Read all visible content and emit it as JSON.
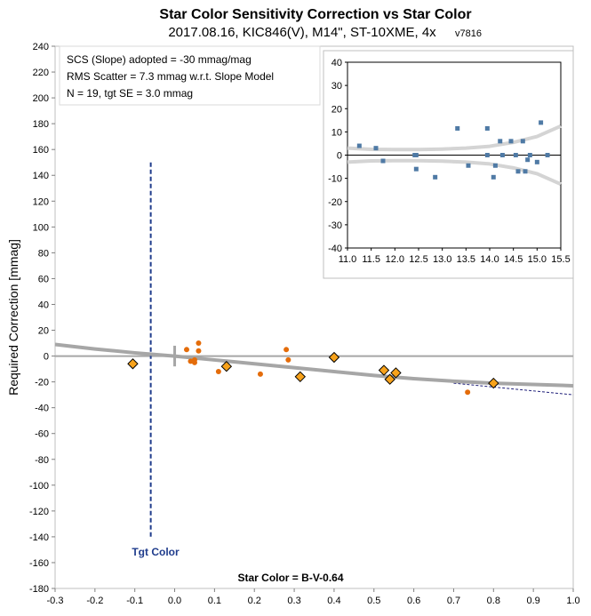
{
  "title": "Star Color Sensitivity Correction vs Star Color",
  "subtitle": "2017.08.16, KIC846(V), M14\", ST-10XME, 4x",
  "version": "v7816",
  "stats_box": {
    "line1": "SCS (Slope) adopted  =  -30 mmag/mag",
    "line2": "RMS Scatter = 7.3 mmag w.r.t. Slope Model",
    "line3": "N = 19,  tgt SE = 3.0 mmag"
  },
  "tgt_color_label": "Tgt Color",
  "colors": {
    "grey_model": "#a6a6a6",
    "orange_dot": "#e46c0a",
    "diamond_fill": "#f7a21b",
    "tgt_line": "#1f3c8c",
    "inset_marker": "#4f7aa5",
    "inset_band": "#d4d4d4"
  },
  "chart_data": [
    {
      "type": "scatter",
      "xlabel": "Star Color = B-V-0.64",
      "ylabel": "Required Correction [mmag]",
      "xlim": [
        -0.3,
        1.0
      ],
      "ylim": [
        -180,
        240
      ],
      "x_ticks": [
        -0.3,
        -0.2,
        -0.1,
        0.0,
        0.1,
        0.2,
        0.3,
        0.4,
        0.5,
        0.6,
        0.7,
        0.8,
        0.9,
        1.0
      ],
      "y_ticks": [
        -180,
        -160,
        -140,
        -120,
        -100,
        -80,
        -60,
        -40,
        -20,
        0,
        20,
        40,
        60,
        80,
        100,
        120,
        140,
        160,
        180,
        200,
        220,
        240
      ],
      "target_color_x": -0.06,
      "series": [
        {
          "marker": "circle",
          "x": [
            0.03,
            0.04,
            0.05,
            0.05,
            0.06,
            0.06,
            0.11,
            0.215,
            0.28,
            0.285,
            0.735
          ],
          "y": [
            5,
            -4,
            -5,
            -3,
            10,
            4,
            -12,
            -14,
            5,
            -3,
            -28
          ]
        },
        {
          "marker": "diamond",
          "x": [
            -0.105,
            0.13,
            0.315,
            0.4,
            0.525,
            0.54,
            0.555,
            0.8
          ],
          "y": [
            -6,
            -8,
            -16,
            -1,
            -11,
            -18,
            -13,
            -21
          ]
        }
      ],
      "model_curve": {
        "x": [
          -0.3,
          -0.2,
          -0.1,
          0.0,
          0.1,
          0.2,
          0.3,
          0.4,
          0.5,
          0.6,
          0.7,
          0.8,
          0.9,
          1.0
        ],
        "y": [
          9,
          5.5,
          2.5,
          0,
          -3,
          -6,
          -9,
          -12,
          -15,
          -17.5,
          -19.5,
          -21,
          -22,
          -23
        ]
      },
      "slope_line": {
        "x": [
          0.7,
          0.8,
          0.9,
          1.0
        ],
        "y": [
          -21,
          -24,
          -27,
          -30
        ]
      }
    },
    {
      "type": "scatter",
      "xlim": [
        11.0,
        15.5
      ],
      "ylim": [
        -40,
        40
      ],
      "x_ticks": [
        11.0,
        11.5,
        12.0,
        12.5,
        13.0,
        13.5,
        14.0,
        14.5,
        15.0,
        15.5
      ],
      "y_ticks": [
        -40,
        -30,
        -20,
        -10,
        0,
        10,
        20,
        30,
        40
      ],
      "x": [
        11.25,
        11.6,
        11.75,
        12.42,
        12.45,
        12.45,
        12.85,
        13.32,
        13.55,
        13.95,
        13.95,
        14.08,
        14.12,
        14.22,
        14.27,
        14.45,
        14.55,
        14.6,
        14.7,
        14.75,
        14.8,
        14.85,
        15.0,
        15.08,
        15.22
      ],
      "y": [
        4,
        3,
        -2.5,
        0,
        0,
        -6,
        -9.5,
        11.5,
        -4.5,
        11.5,
        0,
        -9.5,
        -4.5,
        6,
        0,
        6,
        0,
        -7,
        6,
        -7,
        -2,
        0,
        -3,
        14,
        0
      ],
      "band_upper": {
        "x": [
          11.0,
          11.5,
          12.0,
          12.5,
          13.0,
          13.5,
          14.0,
          14.5,
          15.0,
          15.5
        ],
        "y": [
          3.0,
          2.5,
          2.4,
          2.4,
          2.6,
          3.0,
          3.8,
          5.5,
          8.0,
          12.5
        ]
      },
      "band_lower": {
        "x": [
          11.0,
          11.5,
          12.0,
          12.5,
          13.0,
          13.5,
          14.0,
          14.5,
          15.0,
          15.5
        ],
        "y": [
          -3.0,
          -2.5,
          -2.4,
          -2.4,
          -2.6,
          -3.0,
          -3.8,
          -5.5,
          -8.0,
          -12.5
        ]
      }
    }
  ]
}
